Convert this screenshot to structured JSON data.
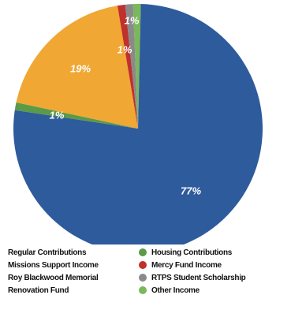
{
  "chart_data": {
    "type": "pie",
    "slices": [
      {
        "name": "Other Income",
        "value": 1,
        "label": "1%",
        "color": "#7ab85a"
      },
      {
        "name": "Regular Contributions",
        "value": 77,
        "label": "77%",
        "color": "#2e5b9c"
      },
      {
        "name": "Housing Contributions",
        "value": 1,
        "label": "1%",
        "color": "#5b9a47"
      },
      {
        "name": "Missions Support Income",
        "value": 19,
        "label": "19%",
        "color": "#f0a733"
      },
      {
        "name": "Mercy Fund Income",
        "value": 1,
        "label": "1%",
        "color": "#c0302d"
      },
      {
        "name": "RTPS Student Scholarship",
        "value": 1,
        "label": "1%",
        "color": "#8a8a8a"
      }
    ]
  },
  "legend": {
    "left": [
      {
        "label": "Regular Contributions",
        "color": "#2e5b9c"
      },
      {
        "label": "Missions Support Income",
        "color": "#f0a733"
      },
      {
        "label": "Roy Blackwood Memorial",
        "color": "#f0a733"
      },
      {
        "label": "Renovation Fund",
        "color": "#f0a733"
      }
    ],
    "right": [
      {
        "label": "Housing Contributions",
        "color": "#5b9a47"
      },
      {
        "label": "Mercy Fund Income",
        "color": "#c0302d"
      },
      {
        "label": "RTPS Student Scholarship",
        "color": "#8a8a8a"
      },
      {
        "label": "Other Income",
        "color": "#7ab85a"
      }
    ]
  }
}
